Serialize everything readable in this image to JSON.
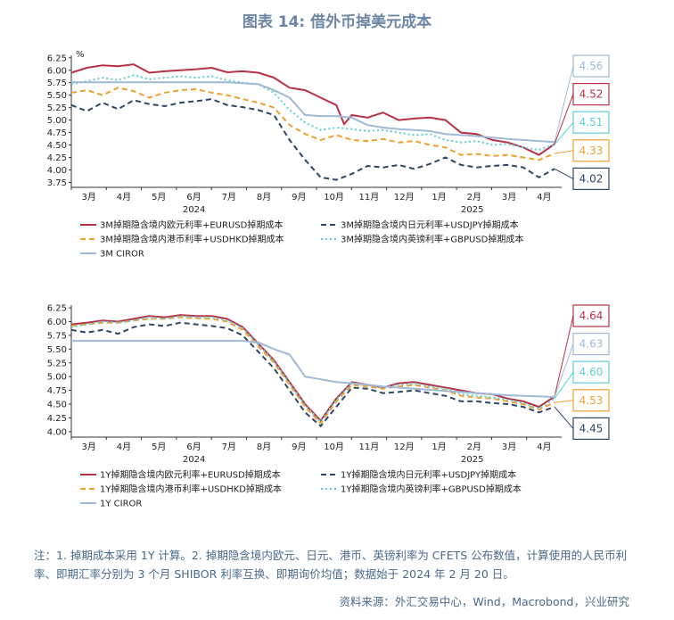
{
  "title": "图表 14: 借外币掉美元成本",
  "footnote": "注：1. 掉期成本采用 1Y 计算。2. 掉期隐含境内欧元、日元、港币、英镑利率为 CFETS 公布数值，计算使用的人民币利率、即期汇率分别为 3 个月 SHIBOR 利率互换、即期询价均值；数据始于 2024 年 2 月 20 日。",
  "source": "资料来源：外汇交易中心，Wind，Macrobond，兴业研究",
  "chart_data": [
    {
      "type": "line",
      "unit_label": "%",
      "ylim": [
        3.65,
        6.3
      ],
      "yticks": [
        3.75,
        4.0,
        4.25,
        4.5,
        4.75,
        5.0,
        5.25,
        5.5,
        5.75,
        6.0,
        6.25
      ],
      "xlim": [
        0,
        60
      ],
      "month_labels": [
        "3月",
        "4月",
        "5月",
        "6月",
        "7月",
        "8月",
        "9月",
        "10月",
        "11月",
        "12月",
        "1月",
        "2月",
        "3月",
        "4月"
      ],
      "year_labels": [
        {
          "text": "2024",
          "at": 7.5
        },
        {
          "text": "2025",
          "at": 24.5
        }
      ],
      "legend": "bottom",
      "series": [
        {
          "name": "3M掉期隐含境内欧元利率+EURUSD掉期成本",
          "color": "#b83146",
          "dash": "solid",
          "end_label": "4.52",
          "x": [
            0,
            1,
            2,
            3,
            4,
            5,
            6,
            7,
            8,
            9,
            10,
            11,
            12,
            13,
            14,
            15,
            16,
            17,
            17.5,
            18,
            19,
            20,
            21,
            22,
            23,
            24,
            25,
            26,
            27,
            28,
            29,
            30,
            31
          ],
          "y": [
            5.95,
            6.05,
            6.1,
            6.08,
            6.12,
            5.95,
            5.98,
            6.0,
            6.02,
            6.05,
            5.96,
            5.98,
            5.95,
            5.85,
            5.65,
            5.6,
            5.45,
            5.3,
            4.92,
            5.1,
            5.05,
            5.15,
            5.0,
            5.03,
            5.05,
            5.0,
            4.75,
            4.72,
            4.6,
            4.55,
            4.45,
            4.3,
            4.52
          ]
        },
        {
          "name": "3M掉期隐含境内日元利率+USDJPY掉期成本",
          "color": "#2e4666",
          "dash": "6,4",
          "end_label": "4.02",
          "x": [
            0,
            1,
            2,
            3,
            4,
            5,
            6,
            7,
            8,
            9,
            10,
            11,
            12,
            13,
            14,
            15,
            16,
            17,
            18,
            19,
            20,
            21,
            22,
            23,
            24,
            25,
            26,
            27,
            28,
            29,
            30,
            31
          ],
          "y": [
            5.3,
            5.18,
            5.35,
            5.22,
            5.4,
            5.32,
            5.28,
            5.35,
            5.38,
            5.42,
            5.3,
            5.26,
            5.2,
            5.1,
            4.6,
            4.2,
            3.85,
            3.8,
            3.92,
            4.08,
            4.05,
            4.1,
            4.02,
            4.12,
            4.25,
            4.1,
            4.05,
            4.08,
            4.1,
            4.05,
            3.85,
            4.02
          ]
        },
        {
          "name": "3M掉期隐含境内港币利率+USDHKD掉期成本",
          "color": "#f0a030",
          "dash": "6,4",
          "end_label": "4.33",
          "x": [
            0,
            1,
            2,
            3,
            4,
            5,
            6,
            7,
            8,
            9,
            10,
            11,
            12,
            13,
            14,
            15,
            16,
            17,
            18,
            19,
            20,
            21,
            22,
            23,
            24,
            25,
            26,
            27,
            28,
            29,
            30,
            31
          ],
          "y": [
            5.55,
            5.6,
            5.5,
            5.65,
            5.58,
            5.45,
            5.55,
            5.6,
            5.62,
            5.55,
            5.5,
            5.42,
            5.35,
            5.25,
            4.9,
            4.72,
            4.6,
            4.7,
            4.6,
            4.58,
            4.62,
            4.55,
            4.58,
            4.5,
            4.45,
            4.3,
            4.32,
            4.28,
            4.3,
            4.25,
            4.2,
            4.33
          ]
        },
        {
          "name": "3M掉期隐含境内英镑利率+GBPUSD掉期成本",
          "color": "#5ccfd4",
          "dash": "2,3",
          "end_label": "4.51",
          "x": [
            0,
            1,
            2,
            3,
            4,
            5,
            6,
            7,
            8,
            9,
            10,
            11,
            12,
            13,
            14,
            15,
            16,
            17,
            18,
            19,
            20,
            21,
            22,
            23,
            24,
            25,
            26,
            27,
            28,
            29,
            30,
            31
          ],
          "y": [
            5.72,
            5.78,
            5.85,
            5.8,
            5.9,
            5.82,
            5.85,
            5.88,
            5.85,
            5.88,
            5.8,
            5.75,
            5.72,
            5.55,
            5.2,
            4.95,
            4.8,
            4.85,
            4.82,
            4.78,
            4.8,
            4.75,
            4.7,
            4.72,
            4.6,
            4.55,
            4.58,
            4.5,
            4.52,
            4.45,
            4.4,
            4.51
          ]
        },
        {
          "name": "3M CIROR",
          "color": "#9fb9d6",
          "dash": "solid",
          "end_label": "4.56",
          "x": [
            0,
            1,
            2,
            3,
            4,
            5,
            6,
            7,
            8,
            9,
            10,
            11,
            12,
            13,
            14,
            15,
            16,
            17,
            18,
            19,
            20,
            21,
            22,
            23,
            24,
            25,
            26,
            27,
            28,
            29,
            30,
            31
          ],
          "y": [
            5.76,
            5.76,
            5.76,
            5.76,
            5.76,
            5.76,
            5.76,
            5.76,
            5.76,
            5.76,
            5.76,
            5.74,
            5.72,
            5.6,
            5.45,
            5.1,
            5.08,
            5.08,
            5.05,
            4.9,
            4.85,
            4.82,
            4.8,
            4.78,
            4.72,
            4.7,
            4.68,
            4.65,
            4.62,
            4.6,
            4.58,
            4.56
          ]
        }
      ]
    },
    {
      "type": "line",
      "ylim": [
        3.9,
        6.3
      ],
      "yticks": [
        4.0,
        4.25,
        4.5,
        4.75,
        5.0,
        5.25,
        5.5,
        5.75,
        6.0,
        6.25
      ],
      "xlim": [
        0,
        60
      ],
      "month_labels": [
        "3月",
        "4月",
        "5月",
        "6月",
        "7月",
        "8月",
        "9月",
        "10月",
        "11月",
        "12月",
        "1月",
        "2月",
        "3月",
        "4月"
      ],
      "year_labels": [
        {
          "text": "2024",
          "at": 7.5
        },
        {
          "text": "2025",
          "at": 24.5
        }
      ],
      "legend": "bottom",
      "series": [
        {
          "name": "1Y掉期隐含境内欧元利率+EURUSD掉期成本",
          "color": "#b83146",
          "dash": "solid",
          "end_label": "4.64",
          "x": [
            0,
            1,
            2,
            3,
            4,
            5,
            6,
            7,
            8,
            9,
            10,
            11,
            12,
            13,
            14,
            15,
            16,
            17,
            18,
            19,
            20,
            21,
            22,
            23,
            24,
            25,
            26,
            27,
            28,
            29,
            30,
            31
          ],
          "y": [
            5.95,
            5.98,
            6.02,
            6.0,
            6.05,
            6.1,
            6.08,
            6.12,
            6.1,
            6.1,
            6.05,
            5.9,
            5.6,
            5.3,
            4.9,
            4.5,
            4.2,
            4.6,
            4.9,
            4.85,
            4.8,
            4.88,
            4.9,
            4.85,
            4.8,
            4.75,
            4.7,
            4.68,
            4.6,
            4.55,
            4.45,
            4.64
          ]
        },
        {
          "name": "1Y掉期隐含境内日元利率+USDJPY掉期成本",
          "color": "#2e4666",
          "dash": "6,4",
          "end_label": "4.45",
          "x": [
            0,
            1,
            2,
            3,
            4,
            5,
            6,
            7,
            8,
            9,
            10,
            11,
            12,
            13,
            14,
            15,
            16,
            17,
            18,
            19,
            20,
            21,
            22,
            23,
            24,
            25,
            26,
            27,
            28,
            29,
            30,
            31
          ],
          "y": [
            5.85,
            5.8,
            5.85,
            5.78,
            5.9,
            5.95,
            5.92,
            5.98,
            5.95,
            5.92,
            5.88,
            5.75,
            5.45,
            5.15,
            4.75,
            4.35,
            4.1,
            4.45,
            4.8,
            4.78,
            4.7,
            4.72,
            4.75,
            4.7,
            4.65,
            4.55,
            4.55,
            4.52,
            4.5,
            4.45,
            4.35,
            4.45
          ]
        },
        {
          "name": "1Y掉期隐含境内港币利率+USDHKD掉期成本",
          "color": "#f0a030",
          "dash": "6,4",
          "end_label": "4.53",
          "x": [
            0,
            1,
            2,
            3,
            4,
            5,
            6,
            7,
            8,
            9,
            10,
            11,
            12,
            13,
            14,
            15,
            16,
            17,
            18,
            19,
            20,
            21,
            22,
            23,
            24,
            25,
            26,
            27,
            28,
            29,
            30,
            31
          ],
          "y": [
            5.92,
            5.95,
            5.98,
            5.98,
            6.02,
            6.05,
            6.05,
            6.08,
            6.06,
            6.05,
            6.0,
            5.85,
            5.55,
            5.25,
            4.85,
            4.45,
            4.15,
            4.55,
            4.85,
            4.82,
            4.78,
            4.82,
            4.85,
            4.8,
            4.75,
            4.65,
            4.62,
            4.6,
            4.55,
            4.5,
            4.4,
            4.53
          ]
        },
        {
          "name": "1Y掉期隐含境内英镑利率+GBPUSD掉期成本",
          "color": "#5ccfd4",
          "dash": "2,3",
          "end_label": "4.60",
          "x": [
            0,
            1,
            2,
            3,
            4,
            5,
            6,
            7,
            8,
            9,
            10,
            11,
            12,
            13,
            14,
            15,
            16,
            17,
            18,
            19,
            20,
            21,
            22,
            23,
            24,
            25,
            26,
            27,
            28,
            29,
            30,
            31
          ],
          "y": [
            5.9,
            5.95,
            6.0,
            5.98,
            6.02,
            6.08,
            6.05,
            6.1,
            6.08,
            6.08,
            6.02,
            5.88,
            5.58,
            5.28,
            4.88,
            4.48,
            4.18,
            4.58,
            4.88,
            4.85,
            4.8,
            4.85,
            4.88,
            4.82,
            4.78,
            4.68,
            4.65,
            4.62,
            4.58,
            4.52,
            4.42,
            4.6
          ]
        },
        {
          "name": "1Y CIROR",
          "color": "#9fb9d6",
          "dash": "solid",
          "end_label": "4.63",
          "x": [
            0,
            1,
            2,
            3,
            4,
            5,
            6,
            7,
            8,
            9,
            10,
            11,
            12,
            13,
            14,
            15,
            16,
            17,
            18,
            19,
            20,
            21,
            22,
            23,
            24,
            25,
            26,
            27,
            28,
            29,
            30,
            31
          ],
          "y": [
            5.65,
            5.65,
            5.65,
            5.65,
            5.65,
            5.65,
            5.65,
            5.65,
            5.65,
            5.65,
            5.65,
            5.65,
            5.62,
            5.5,
            5.4,
            5.0,
            4.95,
            4.9,
            4.88,
            4.85,
            4.82,
            4.8,
            4.78,
            4.76,
            4.74,
            4.72,
            4.7,
            4.68,
            4.66,
            4.65,
            4.64,
            4.63
          ]
        }
      ]
    }
  ]
}
